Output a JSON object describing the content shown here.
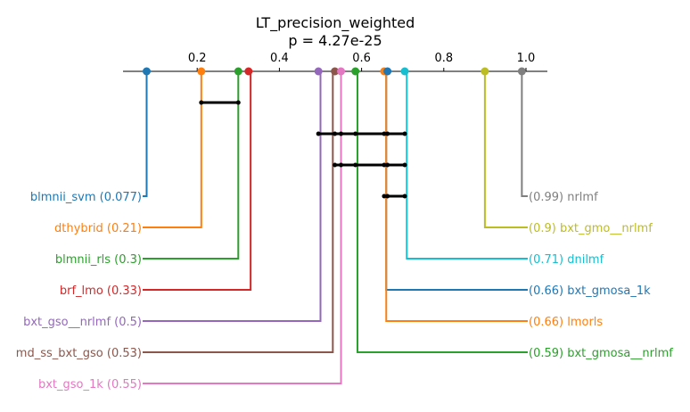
{
  "chart_data": {
    "type": "critical-difference",
    "title": "LT_precision_weighted",
    "subtitle": "p = 4.27e-25",
    "xlim": [
      0.0,
      1.05
    ],
    "ticks": [
      "0.2",
      "0.4",
      "0.6",
      "0.8",
      "1.0"
    ],
    "tick_values": [
      0.2,
      0.4,
      0.6,
      0.8,
      1.0
    ],
    "left_methods": [
      {
        "name": "blmnii_svm",
        "value": 0.077,
        "label": "blmnii_svm (0.077)",
        "color": "#1f77b4"
      },
      {
        "name": "dthybrid",
        "value": 0.21,
        "label": "dthybrid (0.21)",
        "color": "#ff7f0e"
      },
      {
        "name": "blmnii_rls",
        "value": 0.3,
        "label": "blmnii_rls (0.3)",
        "color": "#2ca02c"
      },
      {
        "name": "brf_lmo",
        "value": 0.33,
        "label": "brf_lmo (0.33)",
        "color": "#d62728"
      },
      {
        "name": "bxt_gso__nrlmf",
        "value": 0.5,
        "label": "bxt_gso__nrlmf (0.5)",
        "color": "#9467bd"
      },
      {
        "name": "md_ss_bxt_gso",
        "value": 0.53,
        "label": "md_ss_bxt_gso (0.53)",
        "color": "#8c564b"
      },
      {
        "name": "bxt_gso_1k",
        "value": 0.55,
        "label": "bxt_gso_1k (0.55)",
        "color": "#e377c2"
      }
    ],
    "right_methods": [
      {
        "name": "nrlmf",
        "value": 0.99,
        "label": "(0.99) nrlmf",
        "color": "#7f7f7f"
      },
      {
        "name": "bxt_gmo__nrlmf",
        "value": 0.9,
        "label": "(0.9) bxt_gmo__nrlmf",
        "color": "#bcbd22"
      },
      {
        "name": "dnilmf",
        "value": 0.71,
        "label": "(0.71) dnilmf",
        "color": "#17becf"
      },
      {
        "name": "bxt_gmosa_1k",
        "value": 0.66,
        "label": "(0.66) bxt_gmosa_1k",
        "color": "#1f77b4"
      },
      {
        "name": "lmorls",
        "value": 0.66,
        "label": "(0.66) lmorls",
        "color": "#ff7f0e"
      },
      {
        "name": "bxt_gmosa__nrlmf",
        "value": 0.59,
        "label": "(0.59) bxt_gmosa__nrlmf",
        "color": "#2ca02c"
      }
    ],
    "point_order": [
      {
        "name": "blmnii_svm",
        "value": 0.077,
        "color": "#1f77b4"
      },
      {
        "name": "dthybrid",
        "value": 0.21,
        "color": "#ff7f0e"
      },
      {
        "name": "blmnii_rls",
        "value": 0.3,
        "color": "#2ca02c"
      },
      {
        "name": "brf_lmo",
        "value": 0.325,
        "color": "#d62728"
      },
      {
        "name": "bxt_gso__nrlmf",
        "value": 0.495,
        "color": "#9467bd"
      },
      {
        "name": "md_ss_bxt_gso",
        "value": 0.535,
        "color": "#8c564b"
      },
      {
        "name": "bxt_gso_1k",
        "value": 0.55,
        "color": "#e377c2"
      },
      {
        "name": "bxt_gmosa__nrlmf",
        "value": 0.585,
        "color": "#2ca02c"
      },
      {
        "name": "lmorls",
        "value": 0.655,
        "color": "#ff7f0e"
      },
      {
        "name": "bxt_gmosa_1k",
        "value": 0.663,
        "color": "#1f77b4"
      },
      {
        "name": "dnilmf",
        "value": 0.705,
        "color": "#17becf"
      },
      {
        "name": "bxt_gmo__nrlmf",
        "value": 0.9,
        "color": "#bcbd22"
      },
      {
        "name": "nrlmf",
        "value": 0.99,
        "color": "#7f7f7f"
      }
    ],
    "cliques": [
      {
        "from": 0.21,
        "to": 0.3
      },
      {
        "from": 0.495,
        "to": 0.705
      },
      {
        "from": 0.535,
        "to": 0.705
      },
      {
        "from": 0.655,
        "to": 0.705
      }
    ]
  }
}
